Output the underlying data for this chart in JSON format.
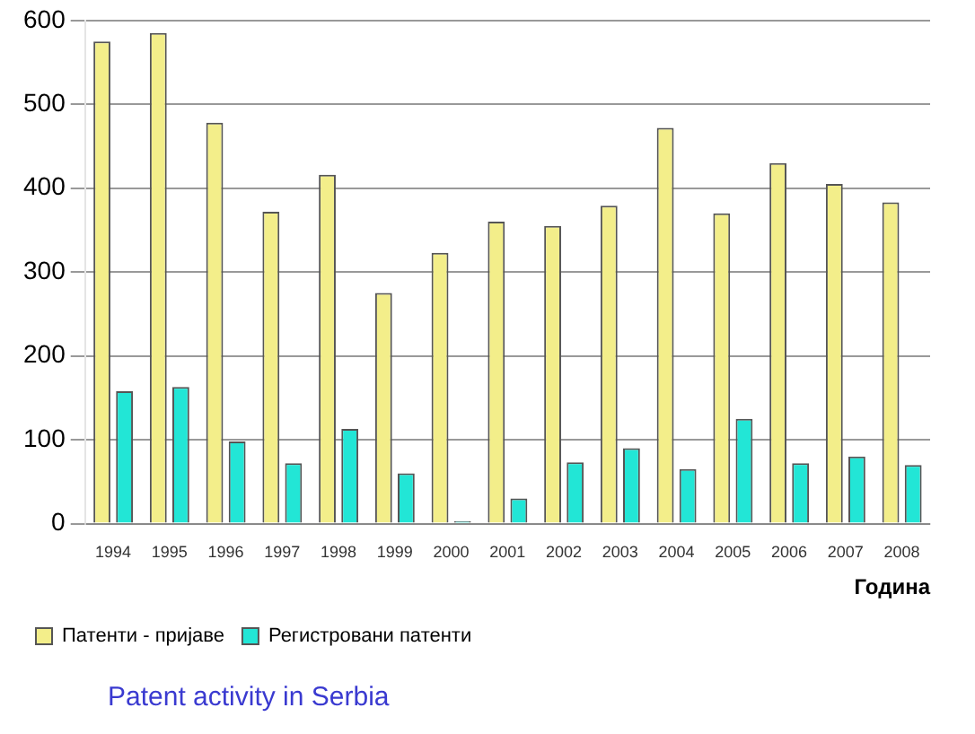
{
  "chart_data": {
    "type": "bar",
    "xlabel": "Година",
    "categories": [
      "1994",
      "1995",
      "1996",
      "1997",
      "1998",
      "1999",
      "2000",
      "2001",
      "2002",
      "2003",
      "2004",
      "2005",
      "2006",
      "2007",
      "2008"
    ],
    "series": [
      {
        "name": "Патенти - пријаве",
        "color": "#f3ee8a",
        "values": [
          575,
          585,
          478,
          372,
          416,
          275,
          323,
          360,
          355,
          379,
          472,
          370,
          430,
          405,
          383
        ]
      },
      {
        "name": "Регистровани патенти",
        "color": "#22e6d6",
        "values": [
          158,
          163,
          98,
          72,
          113,
          60,
          3,
          30,
          73,
          90,
          65,
          125,
          72,
          80,
          70
        ]
      }
    ],
    "ylim": [
      0,
      600
    ],
    "yticks": [
      0,
      100,
      200,
      300,
      400,
      500,
      600
    ],
    "grid": "y",
    "legend": "bottom left",
    "annotations": [
      "Patent activity in Serbia"
    ]
  }
}
